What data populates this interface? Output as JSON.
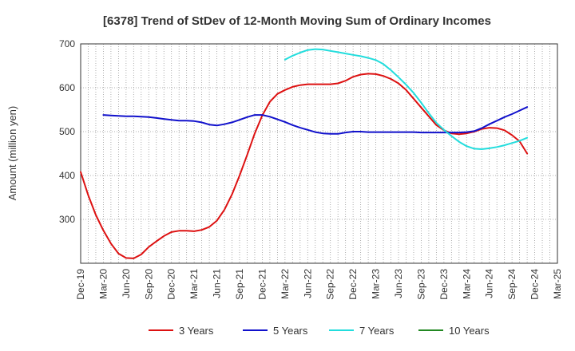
{
  "chart_data": {
    "type": "line",
    "title": "[6378]  Trend of StDev of 12-Month Moving Sum of Ordinary Incomes",
    "xlabel": "",
    "ylabel": "Amount (million yen)",
    "ylim": [
      200,
      700
    ],
    "yticks": [
      300,
      400,
      500,
      600,
      700
    ],
    "x_tick_labels": [
      "Dec-19",
      "Mar-20",
      "Jun-20",
      "Sep-20",
      "Dec-20",
      "Mar-21",
      "Jun-21",
      "Sep-21",
      "Dec-21",
      "Mar-22",
      "Jun-22",
      "Sep-22",
      "Dec-22",
      "Mar-23",
      "Jun-23",
      "Sep-23",
      "Dec-23",
      "Mar-24",
      "Jun-24",
      "Sep-24",
      "Dec-24",
      "Mar-25"
    ],
    "grid": true,
    "legend_position": "bottom",
    "series": [
      {
        "name": "3 Years",
        "color": "#dd1111",
        "x": [
          "Dec-19",
          "Jan-20",
          "Feb-20",
          "Mar-20",
          "Apr-20",
          "May-20",
          "Jun-20",
          "Jul-20",
          "Aug-20",
          "Sep-20",
          "Oct-20",
          "Nov-20",
          "Dec-20",
          "Jan-21",
          "Feb-21",
          "Mar-21",
          "Apr-21",
          "May-21",
          "Jun-21",
          "Jul-21",
          "Aug-21",
          "Sep-21",
          "Oct-21",
          "Nov-21",
          "Dec-21",
          "Jan-22",
          "Feb-22",
          "Mar-22",
          "Apr-22",
          "May-22",
          "Jun-22",
          "Jul-22",
          "Aug-22",
          "Sep-22",
          "Oct-22",
          "Nov-22",
          "Dec-22",
          "Jan-23",
          "Feb-23",
          "Mar-23",
          "Apr-23",
          "May-23",
          "Jun-23",
          "Jul-23",
          "Aug-23",
          "Sep-23",
          "Oct-23",
          "Nov-23",
          "Dec-23",
          "Jan-24",
          "Feb-24",
          "Mar-24",
          "Apr-24",
          "May-24",
          "Jun-24",
          "Jul-24",
          "Aug-24",
          "Sep-24",
          "Oct-24",
          "Nov-24",
          "Dec-24"
        ],
        "values": [
          408,
          355,
          310,
          275,
          245,
          222,
          212,
          211,
          220,
          237,
          250,
          262,
          271,
          274,
          274,
          273,
          276,
          283,
          297,
          322,
          357,
          400,
          447,
          496,
          537,
          568,
          586,
          595,
          602,
          606,
          608,
          608,
          608,
          608,
          610,
          616,
          625,
          630,
          632,
          631,
          627,
          620,
          610,
          595,
          575,
          555,
          535,
          515,
          503,
          496,
          494,
          496,
          500,
          506,
          509,
          508,
          503,
          492,
          478,
          450,
          null
        ],
        "startIndex": 0
      },
      {
        "name": "5 Years",
        "color": "#1111cc",
        "x": [
          "Dec-19",
          "Jan-20",
          "Feb-20",
          "Mar-20",
          "Apr-20",
          "May-20",
          "Jun-20",
          "Jul-20",
          "Aug-20",
          "Sep-20",
          "Oct-20",
          "Nov-20",
          "Dec-20",
          "Jan-21",
          "Feb-21",
          "Mar-21",
          "Apr-21",
          "May-21",
          "Jun-21",
          "Jul-21",
          "Aug-21",
          "Sep-21",
          "Oct-21",
          "Nov-21",
          "Dec-21",
          "Jan-22",
          "Feb-22",
          "Mar-22",
          "Apr-22",
          "May-22",
          "Jun-22",
          "Jul-22",
          "Aug-22",
          "Sep-22",
          "Oct-22",
          "Nov-22",
          "Dec-22",
          "Jan-23",
          "Feb-23",
          "Mar-23",
          "Apr-23",
          "May-23",
          "Jun-23",
          "Jul-23",
          "Aug-23",
          "Sep-23",
          "Oct-23",
          "Nov-23",
          "Dec-23",
          "Jan-24",
          "Feb-24",
          "Mar-24",
          "Apr-24",
          "May-24",
          "Jun-24",
          "Jul-24",
          "Aug-24",
          "Sep-24",
          "Oct-24",
          "Nov-24",
          "Dec-24"
        ],
        "values": [
          null,
          null,
          null,
          538,
          537,
          536,
          535,
          535,
          534,
          533,
          531,
          529,
          527,
          525,
          525,
          524,
          521,
          516,
          514,
          517,
          521,
          527,
          533,
          538,
          538,
          534,
          528,
          522,
          515,
          509,
          504,
          499,
          496,
          495,
          495,
          498,
          500,
          500,
          499,
          499,
          499,
          499,
          499,
          499,
          499,
          498,
          498,
          498,
          498,
          498,
          498,
          499,
          501,
          508,
          517,
          525,
          533,
          540,
          548,
          556,
          null
        ]
      },
      {
        "name": "7 Years",
        "color": "#22dddd",
        "x": [
          "Dec-19",
          "Jan-20",
          "Feb-20",
          "Mar-20",
          "Apr-20",
          "May-20",
          "Jun-20",
          "Jul-20",
          "Aug-20",
          "Sep-20",
          "Oct-20",
          "Nov-20",
          "Dec-20",
          "Jan-21",
          "Feb-21",
          "Mar-21",
          "Apr-21",
          "May-21",
          "Jun-21",
          "Jul-21",
          "Aug-21",
          "Sep-21",
          "Oct-21",
          "Nov-21",
          "Dec-21",
          "Jan-22",
          "Feb-22",
          "Mar-22",
          "Apr-22",
          "May-22",
          "Jun-22",
          "Jul-22",
          "Aug-22",
          "Sep-22",
          "Oct-22",
          "Nov-22",
          "Dec-22",
          "Jan-23",
          "Feb-23",
          "Mar-23",
          "Apr-23",
          "May-23",
          "Jun-23",
          "Jul-23",
          "Aug-23",
          "Sep-23",
          "Oct-23",
          "Nov-23",
          "Dec-23",
          "Jan-24",
          "Feb-24",
          "Mar-24",
          "Apr-24",
          "May-24",
          "Jun-24",
          "Jul-24",
          "Aug-24",
          "Sep-24",
          "Oct-24",
          "Nov-24",
          "Dec-24"
        ],
        "values": [
          null,
          null,
          null,
          null,
          null,
          null,
          null,
          null,
          null,
          null,
          null,
          null,
          null,
          null,
          null,
          null,
          null,
          null,
          null,
          null,
          null,
          null,
          null,
          null,
          null,
          null,
          null,
          664,
          673,
          680,
          686,
          688,
          687,
          684,
          681,
          678,
          675,
          672,
          668,
          663,
          654,
          640,
          624,
          607,
          588,
          566,
          542,
          520,
          504,
          490,
          477,
          467,
          461,
          460,
          462,
          465,
          469,
          474,
          479,
          486,
          null
        ]
      },
      {
        "name": "10 Years",
        "color": "#228822",
        "values": []
      }
    ]
  }
}
